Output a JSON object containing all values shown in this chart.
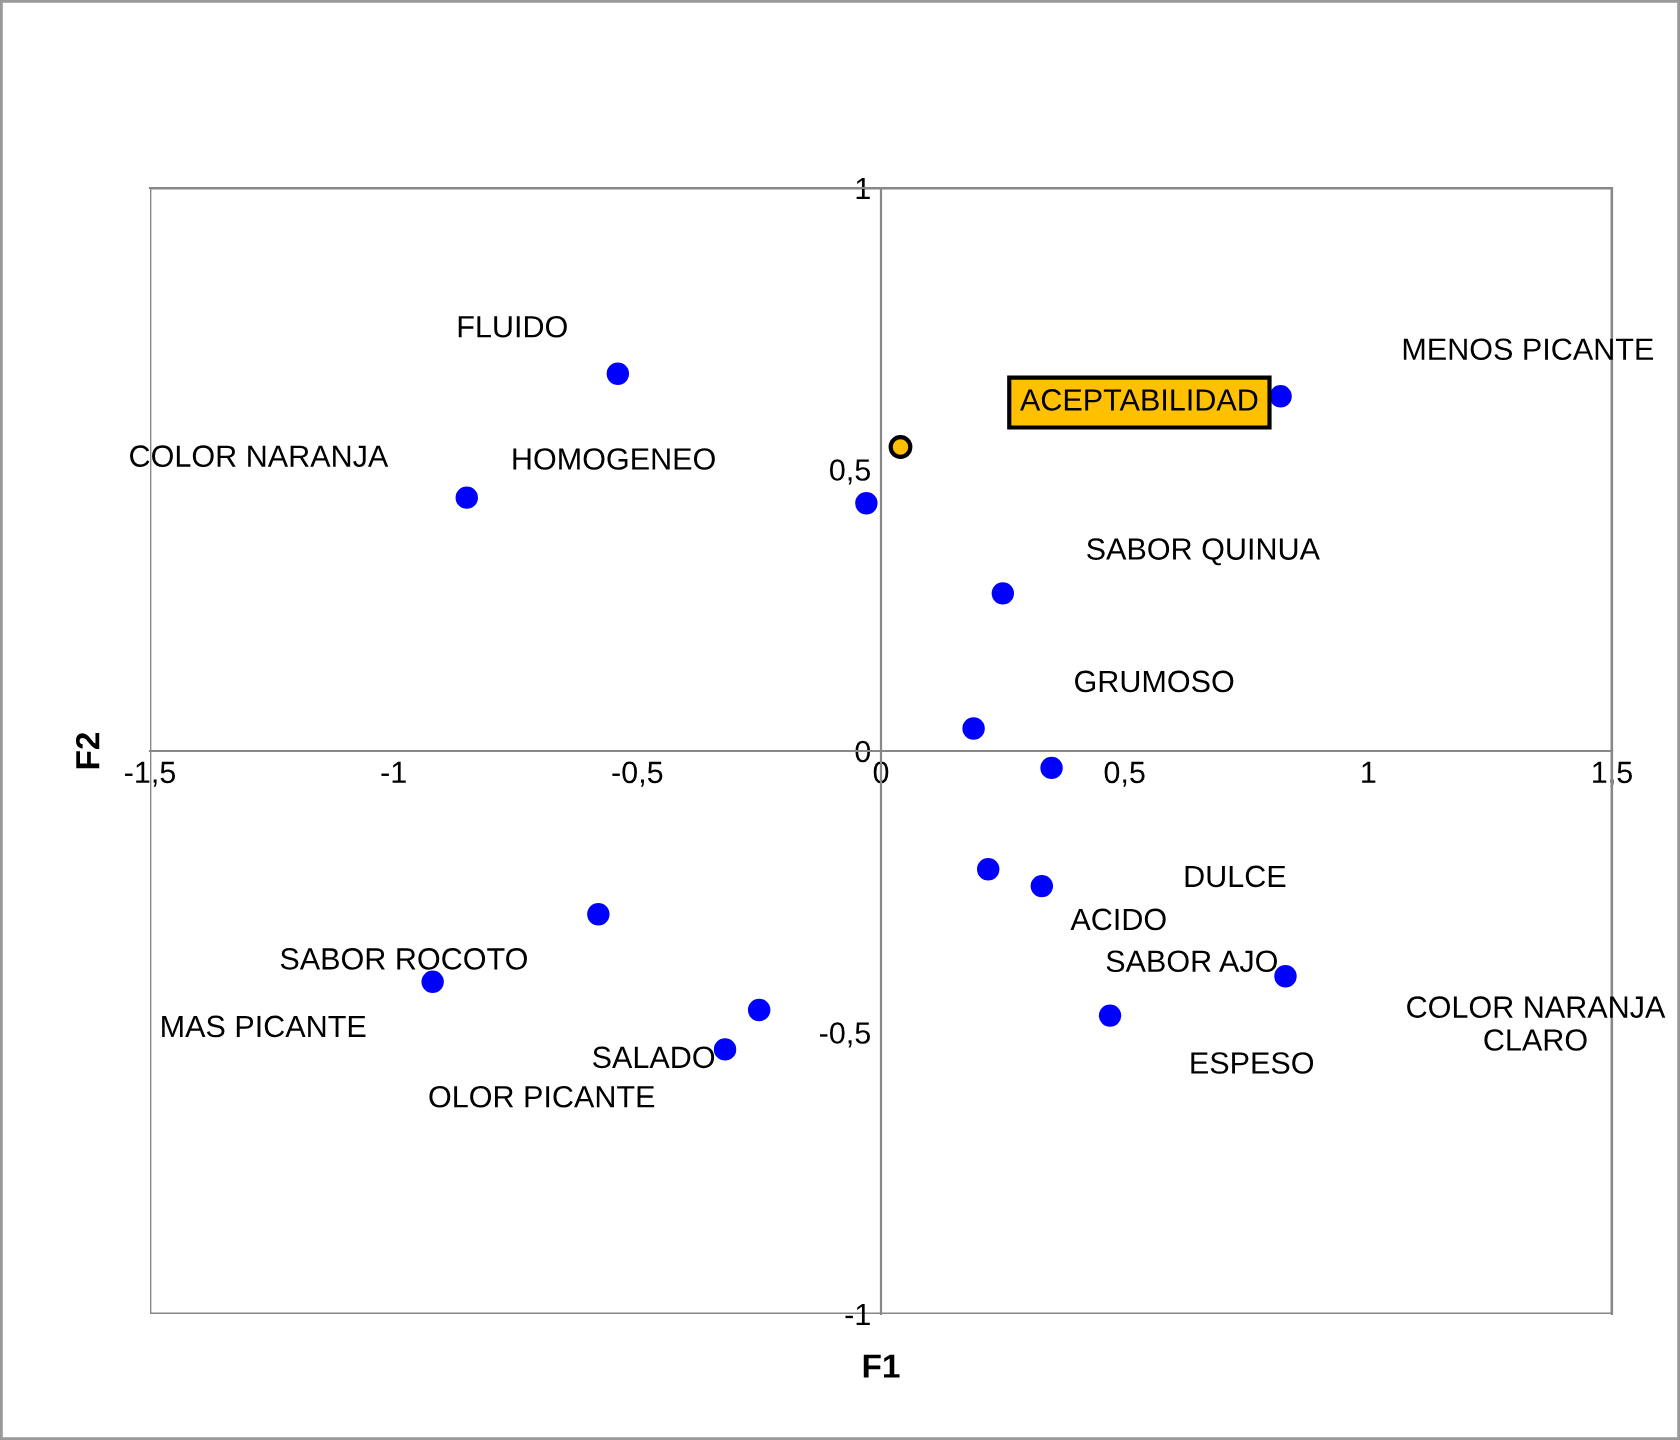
{
  "chart_data": {
    "type": "scatter",
    "xlabel": "F1",
    "ylabel": "F2",
    "xlim": [
      -1.5,
      1.5
    ],
    "ylim": [
      -1,
      1
    ],
    "xticks": [
      {
        "value": -1.5,
        "label": "-1,5"
      },
      -1,
      {
        "value": -0.5,
        "label": "-0,5"
      },
      0,
      {
        "value": 0.5,
        "label": "0,5"
      },
      1,
      {
        "value": 1.5,
        "label": "1,5"
      }
    ],
    "yticks": [
      -1,
      {
        "value": -0.5,
        "label": "-0,5"
      },
      0,
      {
        "value": 0.5,
        "label": "0,5"
      },
      1
    ],
    "grid": false,
    "marker": "circle",
    "series": [
      {
        "color": "#0000ff",
        "x": [
          -0.54,
          -0.85,
          -0.03,
          0.82,
          0.25,
          0.19,
          0.35,
          0.22,
          0.33,
          0.83,
          0.47,
          -0.58,
          -0.92,
          -0.25,
          -0.32
        ],
        "values": [
          0.67,
          0.45,
          0.44,
          0.63,
          0.28,
          0.04,
          -0.03,
          -0.21,
          -0.24,
          -0.4,
          -0.47,
          -0.29,
          -0.41,
          -0.46,
          -0.53
        ]
      },
      {
        "color": "#ffc000",
        "x": [
          0.04
        ],
        "values": [
          0.54
        ]
      }
    ],
    "annotations": [
      "FLUIDO",
      "COLOR NARANJA",
      "HOMOGENEO",
      "MENOS PICANTE",
      "SABOR QUINUA",
      "GRUMOSO",
      "DULCE",
      "ACIDO",
      "SABOR AJO",
      "COLOR NARANJA\nCLARO",
      "ESPESO",
      "SABOR ROCOTO",
      "MAS PICANTE",
      "SALADO",
      "OLOR PICANTE",
      "ACEPTABILIDAD"
    ]
  }
}
